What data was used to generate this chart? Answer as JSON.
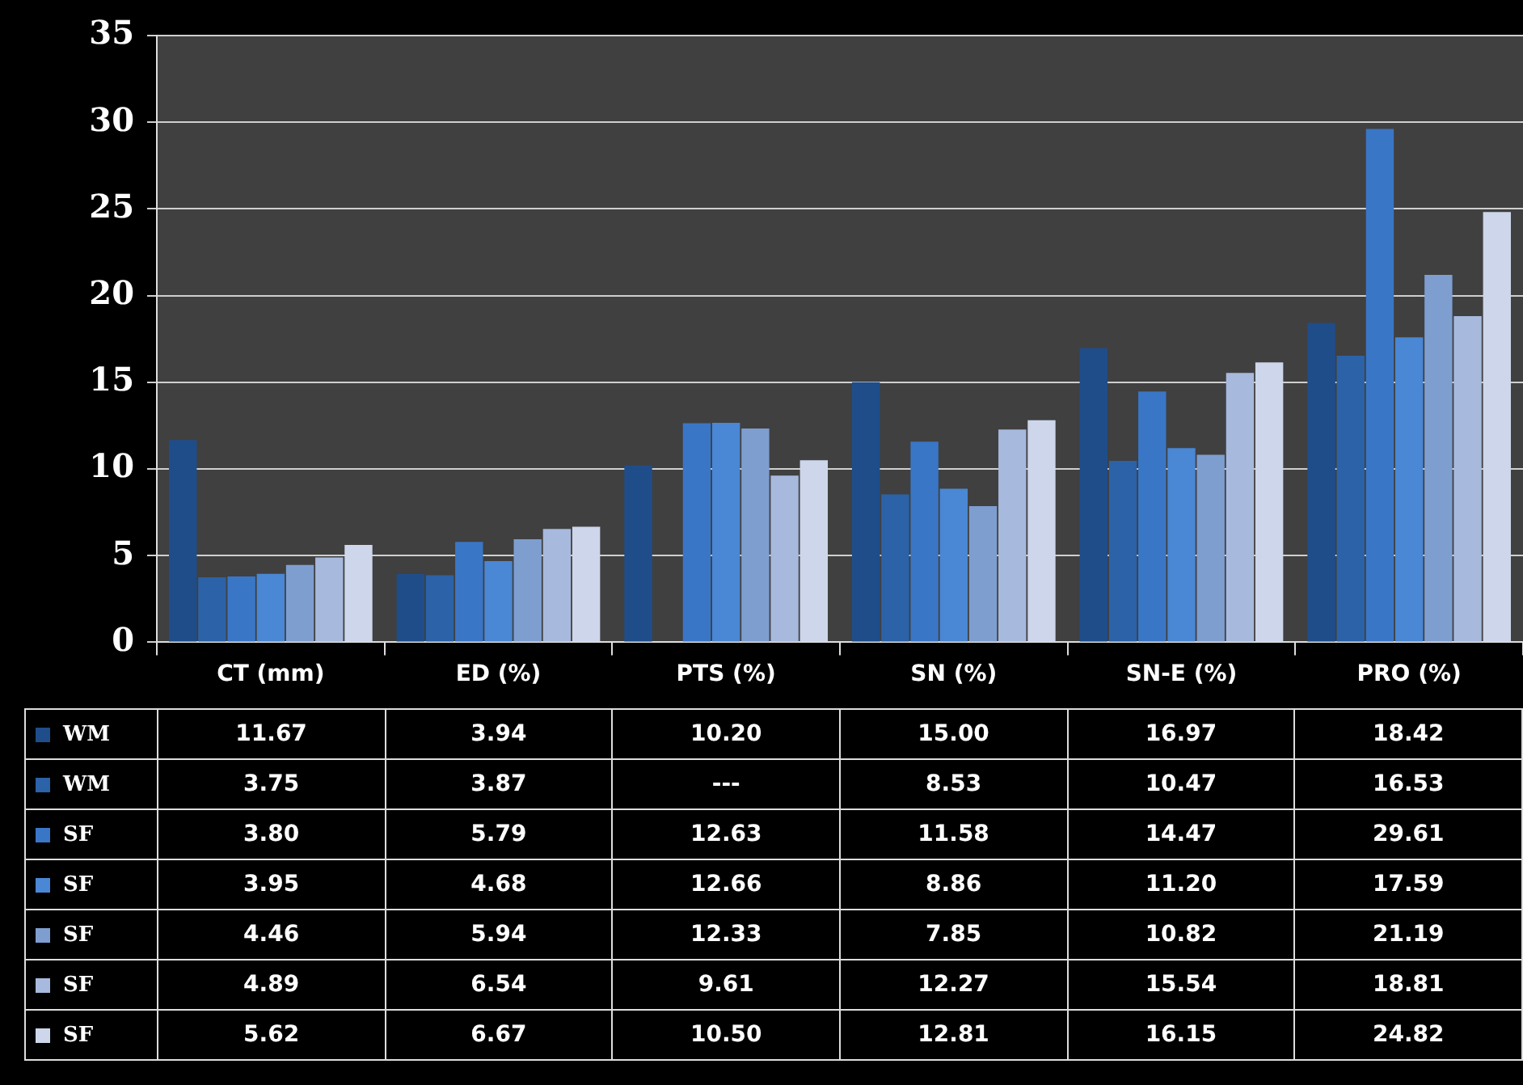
{
  "chart_data": {
    "type": "bar",
    "categories": [
      "CT (mm)",
      "ED (%)",
      "PTS (%)",
      "SN (%)",
      "SN-E (%)",
      "PRO (%)"
    ],
    "ylim": [
      0,
      35
    ],
    "yticks": [
      0,
      5,
      10,
      15,
      20,
      25,
      30,
      35
    ],
    "grid": "y",
    "legend": "left",
    "series": [
      {
        "name": "WM",
        "color": "#1f4d8a",
        "values": [
          11.67,
          3.94,
          10.2,
          15.0,
          16.97,
          18.42
        ],
        "value_labels": [
          "11.67",
          "3.94",
          "10.20",
          "15.00",
          "16.97",
          "18.42"
        ]
      },
      {
        "name": "WM",
        "color": "#2b62a8",
        "values": [
          3.75,
          3.87,
          null,
          8.53,
          10.47,
          16.53
        ],
        "value_labels": [
          "3.75",
          "3.87",
          "---",
          "8.53",
          "10.47",
          "16.53"
        ]
      },
      {
        "name": "SF",
        "color": "#3a76c6",
        "values": [
          3.8,
          5.79,
          12.63,
          11.58,
          14.47,
          29.61
        ],
        "value_labels": [
          "3.80",
          "5.79",
          "12.63",
          "11.58",
          "14.47",
          "29.61"
        ]
      },
      {
        "name": "SF",
        "color": "#4a87d4",
        "values": [
          3.95,
          4.68,
          12.66,
          8.86,
          11.2,
          17.59
        ],
        "value_labels": [
          "3.95",
          "4.68",
          "12.66",
          "8.86",
          "11.20",
          "17.59"
        ]
      },
      {
        "name": "SF",
        "color": "#7e9ed0",
        "values": [
          4.46,
          5.94,
          12.33,
          7.85,
          10.82,
          21.19
        ],
        "value_labels": [
          "4.46",
          "5.94",
          "12.33",
          "7.85",
          "10.82",
          "21.19"
        ]
      },
      {
        "name": "SF",
        "color": "#a7b9dd",
        "values": [
          4.89,
          6.54,
          9.61,
          12.27,
          15.54,
          18.81
        ],
        "value_labels": [
          "4.89",
          "6.54",
          "9.61",
          "12.27",
          "15.54",
          "18.81"
        ]
      },
      {
        "name": "SF",
        "color": "#cdd6ea",
        "values": [
          5.62,
          6.67,
          10.5,
          12.81,
          16.15,
          24.82
        ],
        "value_labels": [
          "5.62",
          "6.67",
          "10.50",
          "12.81",
          "16.15",
          "24.82"
        ]
      }
    ]
  }
}
